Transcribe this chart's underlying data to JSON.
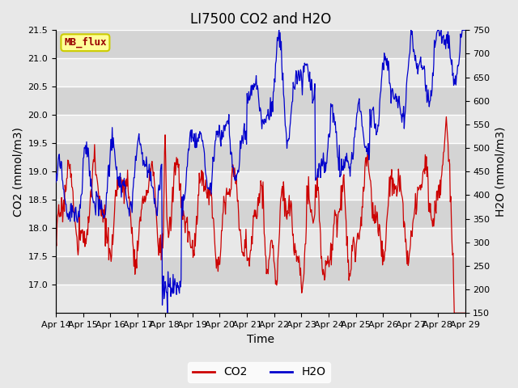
{
  "title": "LI7500 CO2 and H2O",
  "xlabel": "Time",
  "ylabel_left": "CO2 (mmol/m3)",
  "ylabel_right": "H2O (mmol/m3)",
  "co2_ylim": [
    16.5,
    21.5
  ],
  "h2o_ylim": [
    150,
    750
  ],
  "co2_yticks": [
    17.0,
    17.5,
    18.0,
    18.5,
    19.0,
    19.5,
    20.0,
    20.5,
    21.0,
    21.5
  ],
  "h2o_yticks": [
    150,
    200,
    250,
    300,
    350,
    400,
    450,
    500,
    550,
    600,
    650,
    700,
    750
  ],
  "xtick_labels": [
    "Apr 14",
    "Apr 15",
    "Apr 16",
    "Apr 17",
    "Apr 18",
    "Apr 19",
    "Apr 20",
    "Apr 21",
    "Apr 22",
    "Apr 23",
    "Apr 24",
    "Apr 25",
    "Apr 26",
    "Apr 27",
    "Apr 28",
    "Apr 29"
  ],
  "co2_color": "#cc0000",
  "h2o_color": "#0000cc",
  "fig_bg_color": "#e8e8e8",
  "plot_bg_color": "#e8e8e8",
  "grid_color": "#ffffff",
  "band_color": "#d8d8d8",
  "annotation_text": "MB_flux",
  "annotation_bg": "#ffff99",
  "annotation_border": "#cccc00",
  "annotation_text_color": "#990000",
  "legend_co2": "CO2",
  "legend_h2o": "H2O",
  "title_fontsize": 12,
  "label_fontsize": 10,
  "tick_fontsize": 8,
  "legend_fontsize": 10
}
